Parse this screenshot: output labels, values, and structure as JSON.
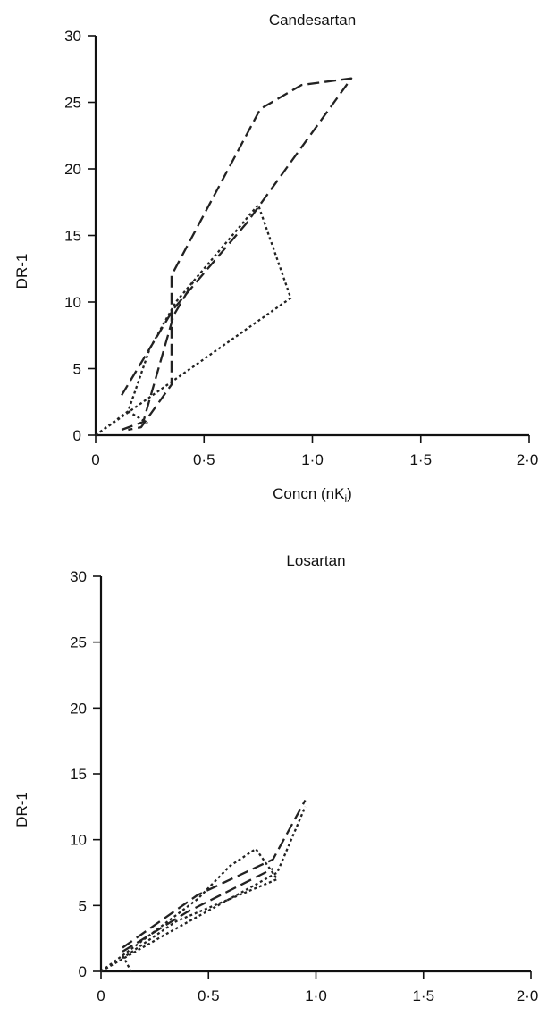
{
  "chart_data": [
    {
      "type": "line",
      "title": "Candesartan",
      "xlabel": "Concn (nK",
      "xlabel_sub": "i",
      "xlabel_close": ")",
      "ylabel": "DR-1",
      "xlim": [
        0,
        2.0
      ],
      "ylim": [
        0,
        30
      ],
      "xticks": [
        0,
        0.5,
        1.0,
        1.5,
        2.0
      ],
      "xtick_labels": [
        "0",
        "0·5",
        "1·0",
        "1·5",
        "2·0"
      ],
      "yticks": [
        0,
        5,
        10,
        15,
        20,
        25,
        30
      ],
      "ytick_labels": [
        "0",
        "5",
        "10",
        "15",
        "20",
        "25",
        "30"
      ],
      "series": [
        {
          "style": "dashed",
          "points": [
            [
              0.12,
              3.0
            ],
            [
              0.36,
              9.5
            ],
            [
              0.7,
              16.0
            ],
            [
              1.18,
              26.8
            ],
            [
              0.95,
              26.3
            ],
            [
              0.76,
              24.5
            ],
            [
              0.35,
              12.0
            ],
            [
              0.35,
              3.8
            ],
            [
              0.21,
              0.6
            ],
            [
              0.15,
              0.4
            ]
          ]
        },
        {
          "style": "dashed",
          "points": [
            [
              0.12,
              0.4
            ],
            [
              0.22,
              1.0
            ],
            [
              0.36,
              9.0
            ],
            [
              0.45,
              11.5
            ]
          ]
        },
        {
          "style": "dotted",
          "points": [
            [
              0.0,
              0.0
            ],
            [
              0.15,
              1.8
            ],
            [
              0.25,
              6.5
            ],
            [
              0.37,
              10.0
            ],
            [
              0.75,
              17.3
            ],
            [
              0.9,
              10.3
            ],
            [
              0.35,
              4.0
            ],
            [
              0.0,
              0.0
            ]
          ]
        },
        {
          "style": "dotted",
          "points": [
            [
              0.15,
              1.8
            ],
            [
              0.24,
              0.9
            ]
          ]
        }
      ]
    },
    {
      "type": "line",
      "title": "Losartan",
      "xlabel": "Concn (nK",
      "xlabel_sub": "i",
      "xlabel_close": ")",
      "ylabel": "DR-1",
      "xlim": [
        0,
        2.0
      ],
      "ylim": [
        0,
        30
      ],
      "xticks": [
        0,
        0.5,
        1.0,
        1.5,
        2.0
      ],
      "xtick_labels": [
        "0",
        "0·5",
        "1·0",
        "1·5",
        "2·0"
      ],
      "yticks": [
        0,
        5,
        10,
        15,
        20,
        25,
        30
      ],
      "ytick_labels": [
        "0",
        "5",
        "10",
        "15",
        "20",
        "25",
        "30"
      ],
      "series": [
        {
          "style": "dashed",
          "points": [
            [
              0.1,
              1.8
            ],
            [
              0.45,
              5.8
            ],
            [
              0.8,
              8.5
            ],
            [
              0.95,
              13.0
            ]
          ]
        },
        {
          "style": "dashed",
          "points": [
            [
              0.1,
              1.5
            ],
            [
              0.4,
              4.5
            ],
            [
              0.8,
              7.8
            ]
          ]
        },
        {
          "style": "dotted",
          "points": [
            [
              0.0,
              0.0
            ],
            [
              0.1,
              1.2
            ],
            [
              0.45,
              5.5
            ],
            [
              0.6,
              8.0
            ],
            [
              0.72,
              9.3
            ],
            [
              0.82,
              7.0
            ],
            [
              0.35,
              3.8
            ],
            [
              0.1,
              1.0
            ]
          ]
        },
        {
          "style": "dotted",
          "points": [
            [
              0.1,
              1.2
            ],
            [
              0.14,
              0.0
            ]
          ]
        },
        {
          "style": "dotted",
          "points": [
            [
              0.0,
              0.0
            ],
            [
              0.3,
              2.8
            ],
            [
              0.82,
              7.5
            ],
            [
              0.95,
              12.5
            ]
          ]
        }
      ]
    }
  ]
}
